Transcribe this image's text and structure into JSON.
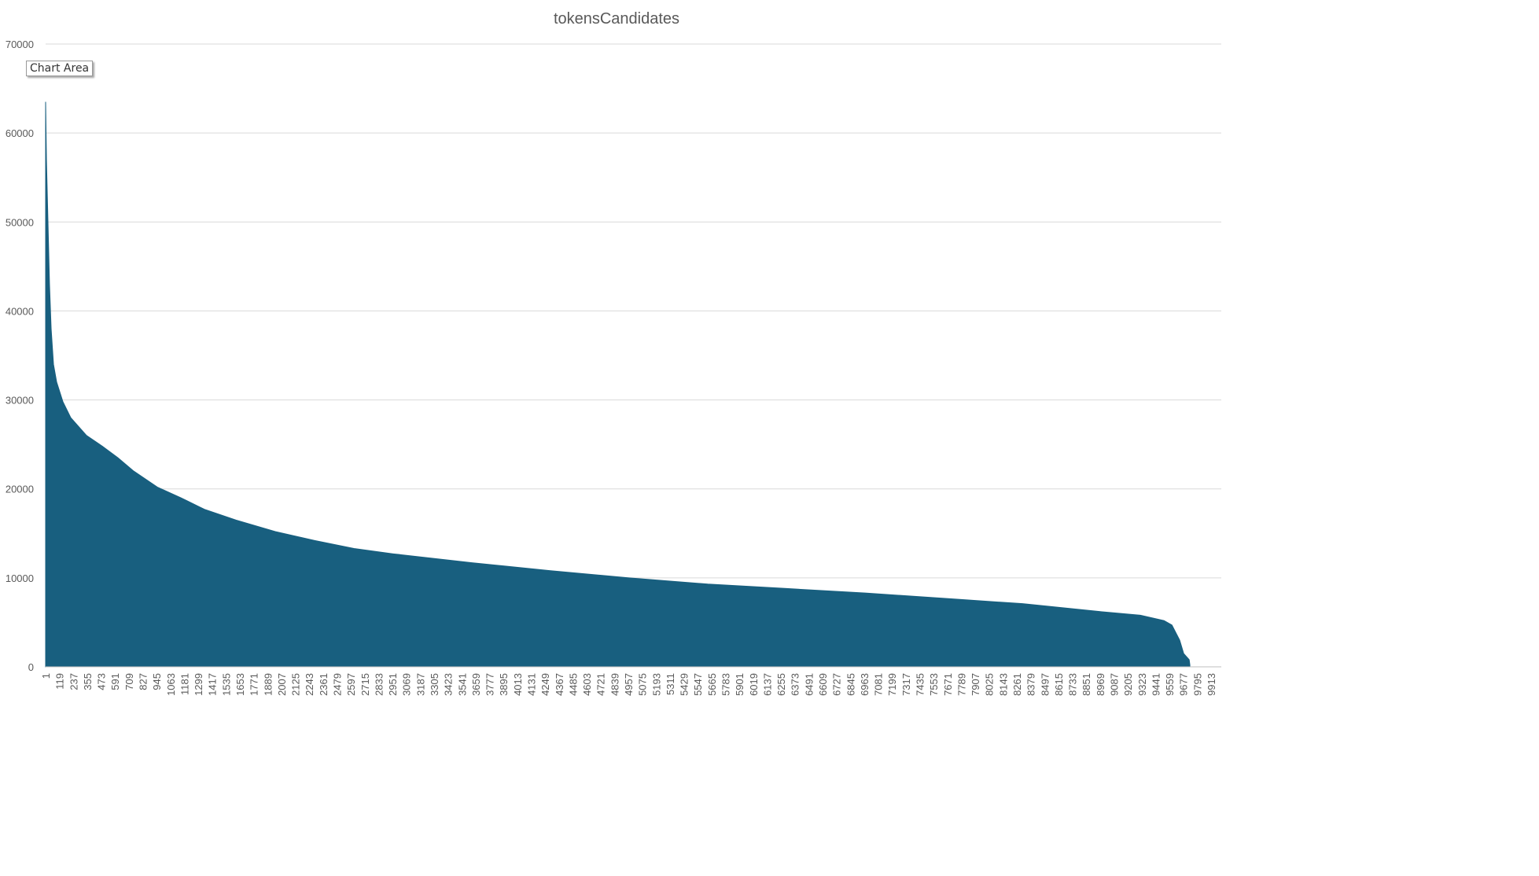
{
  "chart_data": {
    "type": "area",
    "title": "tokensCandidates",
    "tooltip": "Chart Area",
    "x": [
      1,
      8,
      21,
      34,
      48,
      68,
      95,
      148,
      215,
      349,
      483,
      616,
      750,
      951,
      1152,
      1352,
      1620,
      1954,
      2289,
      2623,
      2958,
      3626,
      4295,
      4964,
      5633,
      6302,
      6971,
      7640,
      8309,
      8977,
      9312,
      9513,
      9580,
      9646,
      9680,
      9727,
      9733
    ],
    "series": [
      {
        "name": "tokensCandidates",
        "color": "#185f7f",
        "values": [
          63500,
          57000,
          50000,
          43000,
          38000,
          34000,
          32000,
          29800,
          28000,
          26000,
          24800,
          23500,
          22000,
          20200,
          19000,
          17700,
          16500,
          15200,
          14200,
          13300,
          12700,
          11700,
          10800,
          10000,
          9300,
          8800,
          8300,
          7700,
          7100,
          6200,
          5800,
          5200,
          4700,
          3000,
          1500,
          800,
          200
        ]
      }
    ],
    "xlim": [
      1,
      10000
    ],
    "xticks": [
      1,
      119,
      237,
      355,
      473,
      591,
      709,
      827,
      945,
      1063,
      1181,
      1299,
      1417,
      1535,
      1653,
      1771,
      1889,
      2007,
      2125,
      2243,
      2361,
      2479,
      2597,
      2715,
      2833,
      2951,
      3069,
      3187,
      3305,
      3423,
      3541,
      3659,
      3777,
      3895,
      4013,
      4131,
      4249,
      4367,
      4485,
      4603,
      4721,
      4839,
      4957,
      5075,
      5193,
      5311,
      5429,
      5547,
      5665,
      5783,
      5901,
      6019,
      6137,
      6255,
      6373,
      6491,
      6609,
      6727,
      6845,
      6963,
      7081,
      7199,
      7317,
      7435,
      7553,
      7671,
      7789,
      7907,
      8025,
      8143,
      8261,
      8379,
      8497,
      8615,
      8733,
      8851,
      8969,
      9087,
      9205,
      9323,
      9441,
      9559,
      9677,
      9795,
      9913
    ],
    "ylim": [
      0,
      70000
    ],
    "yticks": [
      0,
      10000,
      20000,
      30000,
      40000,
      50000,
      60000,
      70000
    ],
    "grid": true
  }
}
